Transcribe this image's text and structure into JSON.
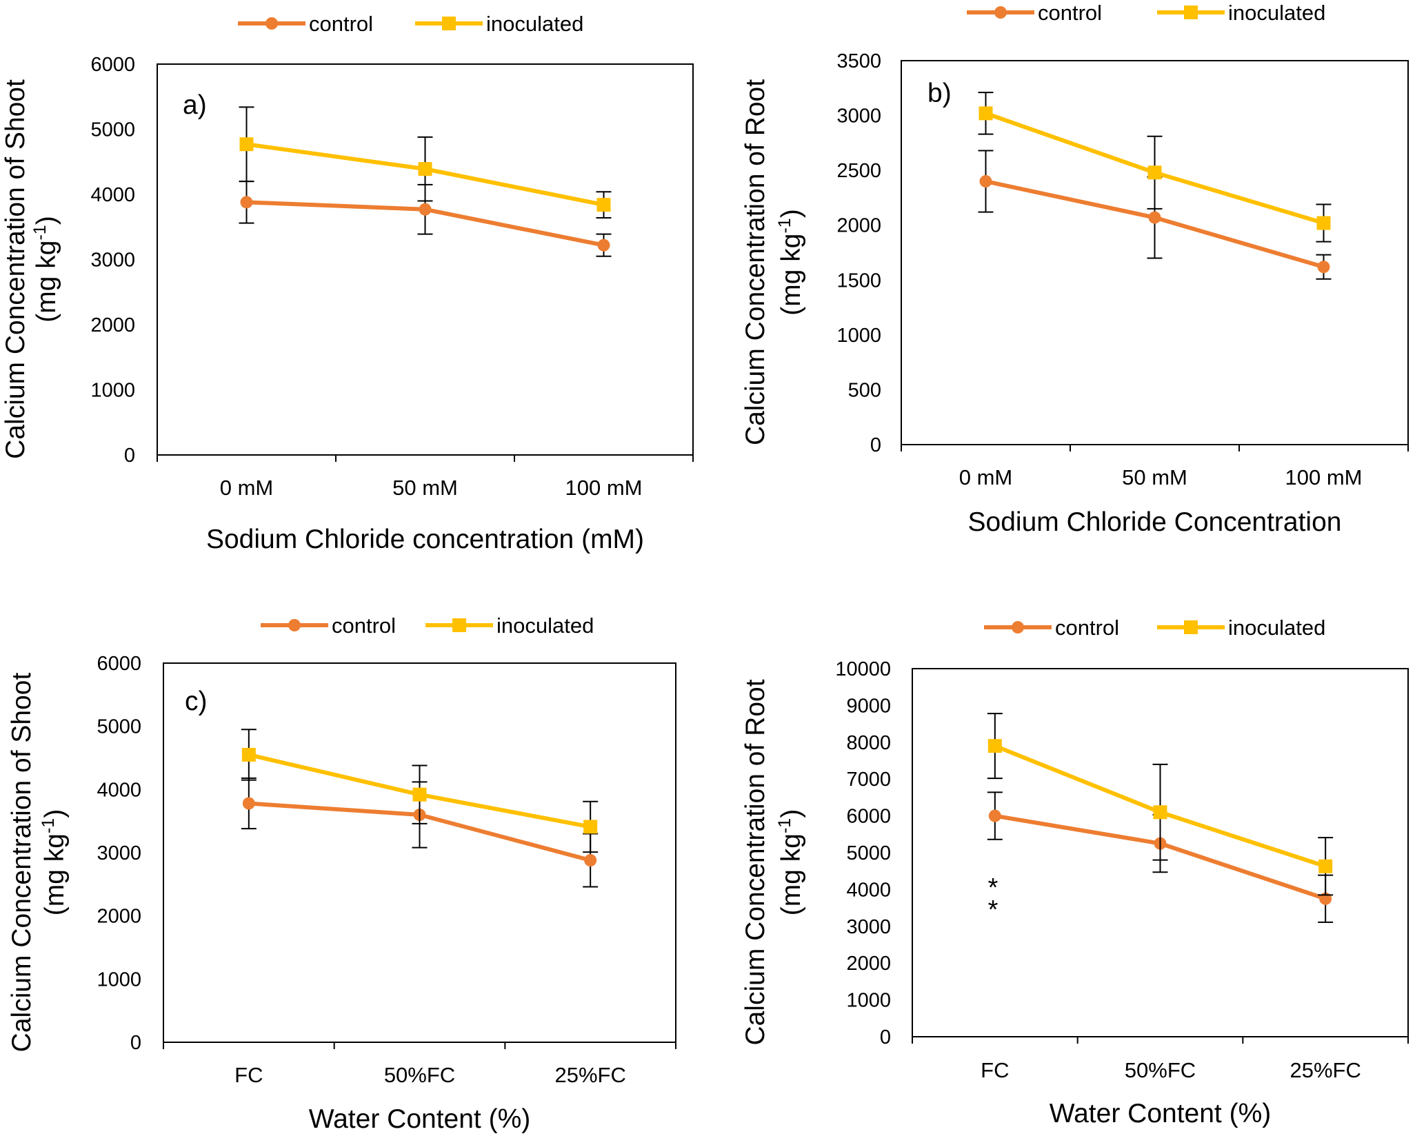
{
  "colors": {
    "control": "#ED7D31",
    "inoculated": "#FFC000",
    "axis": "#000000",
    "plot_border": "#000000"
  },
  "chart_data": [
    {
      "id": "a",
      "type": "line",
      "panel_label": "a)",
      "ylabel_line1": "Calcium Concentration of Shoot",
      "ylabel_line2_base": "(mg kg",
      "ylabel_sup": "-1",
      "ylabel_line2_end": ")",
      "xlabel": "Sodium Chloride concentration (mM)",
      "categories": [
        "0 mM",
        "50 mM",
        "100 mM"
      ],
      "ylim": [
        0,
        6000
      ],
      "yticks": [
        0,
        1000,
        2000,
        3000,
        4000,
        5000,
        6000
      ],
      "legend": [
        "control",
        "inoculated"
      ],
      "legend_position": "top-center",
      "series": [
        {
          "name": "control",
          "values": [
            3880,
            3770,
            3220
          ],
          "errors": [
            320,
            380,
            170
          ]
        },
        {
          "name": "inoculated",
          "values": [
            4770,
            4390,
            3840
          ],
          "errors": [
            570,
            490,
            200
          ]
        }
      ]
    },
    {
      "id": "b",
      "type": "line",
      "panel_label": "b)",
      "ylabel_line1": "Calcium Concentration of Root",
      "ylabel_line2_base": "(mg kg",
      "ylabel_sup": "-1",
      "ylabel_line2_end": ")",
      "xlabel": "Sodium Chloride Concentration",
      "categories": [
        "0 mM",
        "50 mM",
        "100 mM"
      ],
      "ylim": [
        0,
        3500
      ],
      "yticks": [
        0,
        500,
        1000,
        1500,
        2000,
        2500,
        3000,
        3500
      ],
      "legend": [
        "control",
        "inoculated"
      ],
      "legend_position": "top-center",
      "series": [
        {
          "name": "control",
          "values": [
            2400,
            2070,
            1620
          ],
          "errors": [
            280,
            370,
            110
          ]
        },
        {
          "name": "inoculated",
          "values": [
            3020,
            2480,
            2020
          ],
          "errors": [
            190,
            330,
            170
          ]
        }
      ]
    },
    {
      "id": "c",
      "type": "line",
      "panel_label": "c)",
      "ylabel_line1": "Calcium Concentration of Shoot",
      "ylabel_line2_base": "(mg kg",
      "ylabel_sup": "-1",
      "ylabel_line2_end": ")",
      "xlabel": "Water Content (%)",
      "categories": [
        "FC",
        "50%FC",
        "25%FC"
      ],
      "ylim": [
        0,
        6000
      ],
      "yticks": [
        0,
        1000,
        2000,
        3000,
        4000,
        5000,
        6000
      ],
      "legend": [
        "control",
        "inoculated"
      ],
      "legend_position": "top-center",
      "series": [
        {
          "name": "control",
          "values": [
            3780,
            3600,
            2880
          ],
          "errors": [
            400,
            520,
            420
          ]
        },
        {
          "name": "inoculated",
          "values": [
            4550,
            3920,
            3410
          ],
          "errors": [
            400,
            460,
            400
          ]
        }
      ]
    },
    {
      "id": "d",
      "type": "line",
      "panel_label": "",
      "ylabel_line1": "Calcium Concentration of Root",
      "ylabel_line2_base": "(mg kg",
      "ylabel_sup": "-1",
      "ylabel_line2_end": ")",
      "xlabel": "Water Content (%)",
      "categories": [
        "FC",
        "50%FC",
        "25%FC"
      ],
      "ylim": [
        0,
        10000
      ],
      "yticks": [
        0,
        1000,
        2000,
        3000,
        4000,
        5000,
        6000,
        7000,
        8000,
        9000,
        10000
      ],
      "legend": [
        "control",
        "inoculated"
      ],
      "legend_position": "top-center",
      "annotation": "*\n*",
      "series": [
        {
          "name": "control",
          "values": [
            6000,
            5250,
            3750
          ],
          "errors": [
            640,
            780,
            640
          ]
        },
        {
          "name": "inoculated",
          "values": [
            7900,
            6100,
            4630
          ],
          "errors": [
            880,
            1300,
            780
          ]
        }
      ]
    }
  ]
}
